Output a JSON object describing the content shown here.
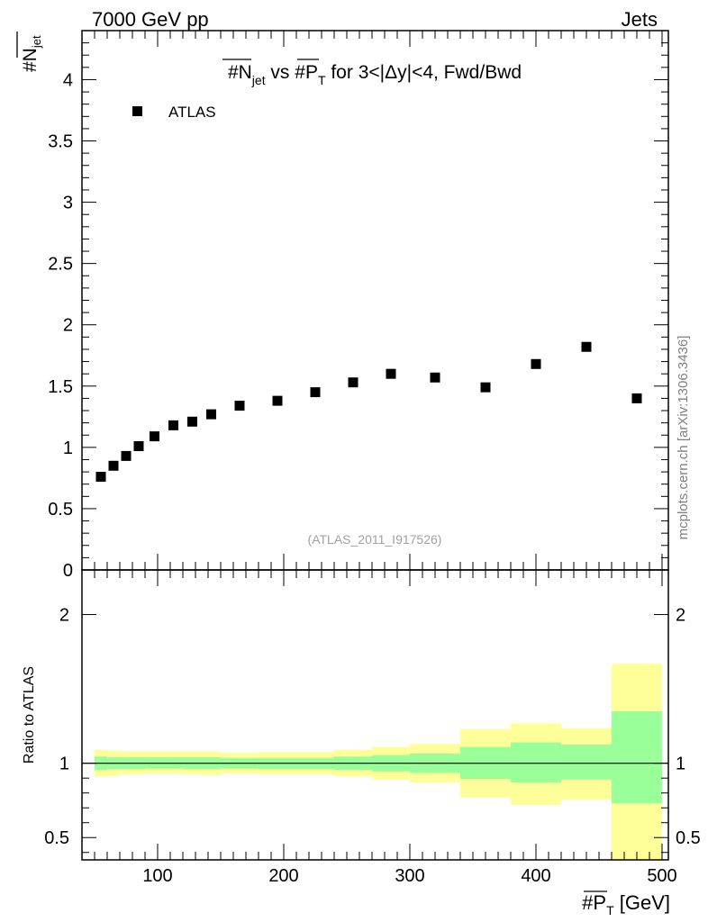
{
  "header": {
    "energy_label": "7000 GeV pp",
    "category_label": "Jets",
    "watermark": "mcplots.cern.ch [arXiv:1306.3436]",
    "analysis_id": "(ATLAS_2011_I917526)"
  },
  "colors": {
    "band_outer": "#ffff99",
    "band_inner": "#99ff99",
    "marker": "#000000",
    "ref_line": "#000000"
  },
  "chart_data": [
    {
      "type": "scatter",
      "title_parts": {
        "prefix": "#N",
        "sub": "jet",
        "mid": " vs #P",
        "sub2": "T",
        "suffix": " for 3<|Δy|<4, Fwd/Bwd"
      },
      "ylabel_parts": {
        "main": "#N",
        "sub": "jet"
      },
      "xlim": [
        40,
        505
      ],
      "ylim": [
        0,
        4.4
      ],
      "y_ticks": [
        0,
        0.5,
        1,
        1.5,
        2,
        2.5,
        3,
        3.5,
        4
      ],
      "y_tick_labels": [
        "0",
        "0.5",
        "1",
        "1.5",
        "2",
        "2.5",
        "3",
        "3.5",
        "4"
      ],
      "legend": {
        "position": "top-left",
        "entries": [
          "ATLAS"
        ]
      },
      "series": [
        {
          "name": "ATLAS",
          "marker": "square",
          "x": [
            55,
            65,
            75,
            85,
            97.5,
            112.5,
            127.5,
            142.5,
            165,
            195,
            225,
            255,
            285,
            320,
            360,
            400,
            440,
            480
          ],
          "y": [
            0.76,
            0.85,
            0.93,
            1.01,
            1.09,
            1.18,
            1.21,
            1.27,
            1.34,
            1.38,
            1.45,
            1.53,
            1.6,
            1.57,
            1.49,
            1.68,
            1.82,
            1.4
          ]
        }
      ]
    },
    {
      "type": "area",
      "ylabel": "Ratio to ATLAS",
      "xlabel_parts": {
        "main": "#P",
        "sub": "T",
        "unit": " [GeV]"
      },
      "xlim": [
        40,
        505
      ],
      "ylim": [
        0.35,
        2.3
      ],
      "x_ticks": [
        100,
        200,
        300,
        400,
        500
      ],
      "x_tick_labels": [
        "100",
        "200",
        "300",
        "400",
        "500"
      ],
      "y_ticks": [
        0.5,
        1,
        2
      ],
      "y_tick_labels": [
        "0.5",
        "1",
        "2"
      ],
      "reference": 1.0,
      "bins": [
        {
          "lo": 50,
          "hi": 60,
          "outer": [
            0.91,
            1.09
          ],
          "inner": [
            0.955,
            1.045
          ]
        },
        {
          "lo": 60,
          "hi": 70,
          "outer": [
            0.915,
            1.085
          ],
          "inner": [
            0.96,
            1.04
          ]
        },
        {
          "lo": 70,
          "hi": 80,
          "outer": [
            0.925,
            1.08
          ],
          "inner": [
            0.96,
            1.04
          ]
        },
        {
          "lo": 80,
          "hi": 90,
          "outer": [
            0.925,
            1.08
          ],
          "inner": [
            0.96,
            1.04
          ]
        },
        {
          "lo": 90,
          "hi": 105,
          "outer": [
            0.93,
            1.08
          ],
          "inner": [
            0.965,
            1.04
          ]
        },
        {
          "lo": 105,
          "hi": 120,
          "outer": [
            0.93,
            1.08
          ],
          "inner": [
            0.965,
            1.04
          ]
        },
        {
          "lo": 120,
          "hi": 135,
          "outer": [
            0.925,
            1.08
          ],
          "inner": [
            0.96,
            1.04
          ]
        },
        {
          "lo": 135,
          "hi": 150,
          "outer": [
            0.92,
            1.08
          ],
          "inner": [
            0.96,
            1.04
          ]
        },
        {
          "lo": 150,
          "hi": 180,
          "outer": [
            0.93,
            1.07
          ],
          "inner": [
            0.965,
            1.035
          ]
        },
        {
          "lo": 180,
          "hi": 210,
          "outer": [
            0.925,
            1.075
          ],
          "inner": [
            0.96,
            1.035
          ]
        },
        {
          "lo": 210,
          "hi": 240,
          "outer": [
            0.925,
            1.075
          ],
          "inner": [
            0.96,
            1.035
          ]
        },
        {
          "lo": 240,
          "hi": 270,
          "outer": [
            0.91,
            1.09
          ],
          "inner": [
            0.955,
            1.045
          ]
        },
        {
          "lo": 270,
          "hi": 300,
          "outer": [
            0.89,
            1.11
          ],
          "inner": [
            0.945,
            1.055
          ]
        },
        {
          "lo": 300,
          "hi": 340,
          "outer": [
            0.87,
            1.13
          ],
          "inner": [
            0.935,
            1.065
          ]
        },
        {
          "lo": 340,
          "hi": 380,
          "outer": [
            0.77,
            1.23
          ],
          "inner": [
            0.895,
            1.11
          ]
        },
        {
          "lo": 380,
          "hi": 420,
          "outer": [
            0.72,
            1.27
          ],
          "inner": [
            0.87,
            1.14
          ]
        },
        {
          "lo": 420,
          "hi": 460,
          "outer": [
            0.755,
            1.235
          ],
          "inner": [
            0.89,
            1.125
          ]
        },
        {
          "lo": 460,
          "hi": 500,
          "outer": [
            0.35,
            1.67
          ],
          "inner": [
            0.73,
            1.35
          ]
        }
      ]
    }
  ]
}
